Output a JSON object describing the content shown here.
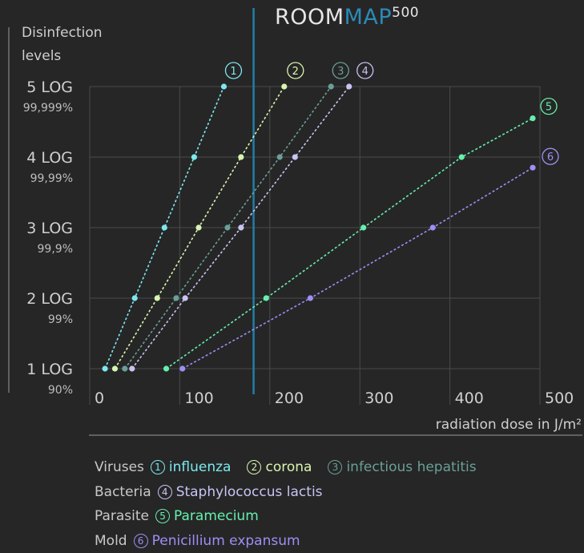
{
  "brand": {
    "part1": "ROOM",
    "part2": "MAP",
    "suffix": "500"
  },
  "chart_data": {
    "type": "line",
    "ylabel": "Disinfection levels",
    "xlabel": "radiation dose in  J/m²",
    "xlim": [
      0,
      500
    ],
    "ylim": [
      1,
      5
    ],
    "x_ticks": [
      "0",
      "100",
      "200",
      "300",
      "400",
      "500"
    ],
    "y_ticks": [
      {
        "label": "1 LOG",
        "sub": "90%"
      },
      {
        "label": "2 LOG",
        "sub": "99%"
      },
      {
        "label": "3 LOG",
        "sub": "99,9%"
      },
      {
        "label": "4 LOG",
        "sub": "99,99%"
      },
      {
        "label": "5 LOG",
        "sub": "99,999%"
      }
    ],
    "reference_line_x": 182,
    "series": [
      {
        "name": "influenza",
        "number": "1",
        "color": "#7de8ee",
        "points": [
          [
            17,
            1
          ],
          [
            50,
            2
          ],
          [
            83,
            3
          ],
          [
            116,
            4
          ],
          [
            149,
            5
          ]
        ],
        "end_log": 5
      },
      {
        "name": "corona",
        "number": "2",
        "color": "#d8f5b0",
        "points": [
          [
            28,
            1
          ],
          [
            75,
            2
          ],
          [
            121,
            3
          ],
          [
            168,
            4
          ],
          [
            216,
            5
          ]
        ],
        "end_log": 5
      },
      {
        "name": "infectious hepatitis",
        "number": "3",
        "color": "#6b9f98",
        "points": [
          [
            39,
            1
          ],
          [
            96,
            2
          ],
          [
            153,
            3
          ],
          [
            211,
            4
          ],
          [
            268,
            5
          ]
        ],
        "end_log": 5
      },
      {
        "name": "Staphylococcus lactis",
        "number": "4",
        "color": "#c8c4f5",
        "points": [
          [
            47,
            1
          ],
          [
            106,
            2
          ],
          [
            168,
            3
          ],
          [
            228,
            4
          ],
          [
            288,
            5
          ]
        ],
        "end_log": 5
      },
      {
        "name": "Paramecium",
        "number": "5",
        "color": "#66f0ad",
        "points": [
          [
            85,
            1
          ],
          [
            196,
            2
          ],
          [
            304,
            3
          ],
          [
            413,
            4
          ],
          [
            492,
            4.55
          ]
        ],
        "end_log": 4.55
      },
      {
        "name": "Penicillium expansum",
        "number": "6",
        "color": "#9d8ff5",
        "points": [
          [
            103,
            1
          ],
          [
            245,
            2
          ],
          [
            381,
            3
          ],
          [
            492,
            3.85
          ]
        ],
        "end_log": 3.85
      }
    ]
  },
  "legend": [
    {
      "group": "Viruses",
      "entries": [
        {
          "number": "1",
          "label": "influenza",
          "color": "#7de8ee"
        },
        {
          "number": "2",
          "label": "corona",
          "color": "#d8f5b0"
        },
        {
          "number": "3",
          "label": "infectious hepatitis",
          "color": "#6b9f98"
        }
      ]
    },
    {
      "group": "Bacteria",
      "entries": [
        {
          "number": "4",
          "label": "Staphylococcus lactis",
          "color": "#c8c4f5"
        }
      ]
    },
    {
      "group": "Parasite",
      "entries": [
        {
          "number": "5",
          "label": "Paramecium",
          "color": "#66f0ad"
        }
      ]
    },
    {
      "group": "Mold",
      "entries": [
        {
          "number": "6",
          "label": "Penicillium expansum",
          "color": "#9d8ff5"
        }
      ]
    }
  ],
  "colors": {
    "background": "#262626",
    "grid": "#4a4a4a",
    "reference_line": "#1f7fa8",
    "brand_accent": "#2b8bb7",
    "text": "#cfcfcf"
  }
}
